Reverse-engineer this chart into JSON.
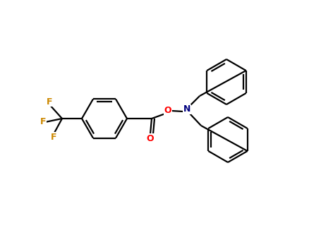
{
  "background_color": "#ffffff",
  "bond_color": "#000000",
  "atom_colors": {
    "O": "#ff0000",
    "N": "#000080",
    "F": "#cc8800",
    "C": "#000000"
  },
  "figsize": [
    4.55,
    3.5
  ],
  "dpi": 100,
  "ring_r": 32,
  "lw": 1.6
}
